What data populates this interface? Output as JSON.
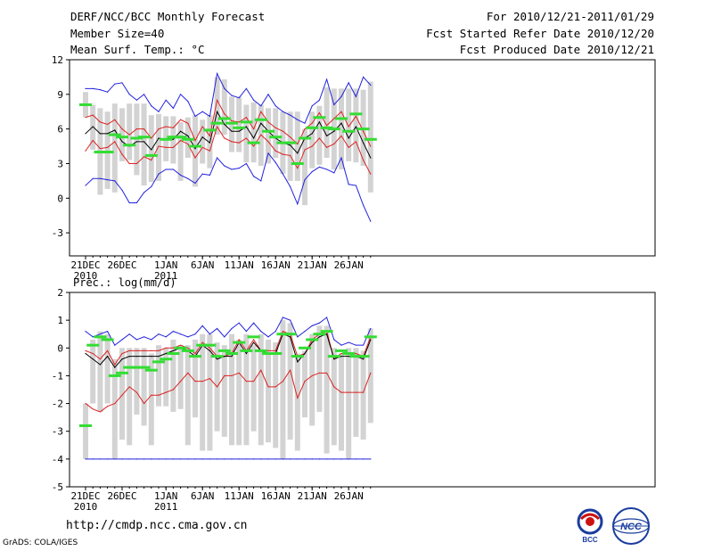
{
  "header": {
    "line1_left": "DERF/NCC/BCC Monthly Forecast",
    "line2_left": "Member Size=40",
    "line3_left": "Mean Surf. Temp.: °C",
    "line1_right": "For 2010/12/21-2011/01/29",
    "line2_right": "Fcst Started Refer Date 2010/12/20",
    "line3_right": "Fcst Produced Date 2010/12/21"
  },
  "footer": {
    "url": "http://cmdp.ncc.cma.gov.cn",
    "credit": "GrADS: COLA/IGES",
    "logo_left_text": "BCC",
    "logo_right_text": "NCC"
  },
  "colors": {
    "bar": "#d3d3d3",
    "green": "#33dd33",
    "mean": "#000000",
    "band": "#dd2222",
    "extreme": "#2222dd",
    "logo_blue": "#1a3d9e",
    "logo_red": "#cc1111"
  },
  "chart_data": [
    {
      "type": "line",
      "title": "Mean Surf. Temp.: °C",
      "ylabel": "°C",
      "ylim": [
        -5,
        12
      ],
      "yticks": [
        -3,
        0,
        3,
        6,
        9,
        12
      ],
      "x": [
        1,
        2,
        3,
        4,
        5,
        6,
        7,
        8,
        9,
        10,
        11,
        12,
        13,
        14,
        15,
        16,
        17,
        18,
        19,
        20,
        21,
        22,
        23,
        24,
        25,
        26,
        27,
        28,
        29,
        30,
        31,
        32,
        33,
        34,
        35,
        36,
        37,
        38,
        39,
        40
      ],
      "xticks": [
        {
          "x": 1,
          "label": "21DEC",
          "sub": "2010"
        },
        {
          "x": 6,
          "label": "26DEC",
          "sub": ""
        },
        {
          "x": 12,
          "label": "1JAN",
          "sub": "2011"
        },
        {
          "x": 17,
          "label": "6JAN",
          "sub": ""
        },
        {
          "x": 22,
          "label": "11JAN",
          "sub": ""
        },
        {
          "x": 27,
          "label": "16JAN",
          "sub": ""
        },
        {
          "x": 32,
          "label": "21JAN",
          "sub": ""
        },
        {
          "x": 37,
          "label": "26JAN",
          "sub": ""
        }
      ],
      "bars": {
        "low": [
          7.0,
          4.2,
          0.3,
          0.8,
          0.5,
          3.2,
          3.3,
          2.0,
          1.1,
          1.4,
          1.5,
          3.2,
          3.0,
          1.5,
          3.5,
          1.0,
          3.0,
          2.6,
          5.5,
          5.5,
          4.0,
          4.0,
          3.1,
          3.1,
          2.8,
          3.0,
          3.5,
          2.1,
          1.5,
          1.5,
          -0.6,
          2.6,
          2.9,
          3.5,
          2.5,
          2.5,
          3.2,
          3.1,
          2.8,
          0.5
        ],
        "high": [
          9.2,
          8.1,
          7.8,
          7.5,
          8.2,
          7.8,
          8.2,
          8.2,
          8.2,
          7.2,
          7.3,
          7.1,
          7.1,
          6.6,
          7.0,
          7.2,
          6.8,
          7.2,
          10.5,
          10.3,
          8.8,
          8.8,
          8.1,
          8.3,
          8.1,
          7.8,
          7.8,
          7.5,
          7.5,
          7.5,
          6.0,
          7.5,
          8.0,
          9.6,
          9.5,
          9.5,
          9.5,
          9.5,
          9.4,
          10.1
        ]
      },
      "green_marks": [
        8.1,
        null,
        4.0,
        4.0,
        5.5,
        5.3,
        4.6,
        5.2,
        5.3,
        3.7,
        null,
        5.1,
        5.3,
        5.3,
        5.1,
        4.5,
        null,
        5.9,
        6.5,
        6.9,
        6.5,
        6.1,
        6.6,
        4.8,
        6.8,
        5.8,
        5.3,
        4.8,
        4.8,
        3.0,
        5.2,
        6.1,
        7.0,
        6.1,
        6.0,
        6.9,
        5.8,
        7.3,
        6.0,
        5.1
      ],
      "series": [
        {
          "name": "max",
          "color": "#2222dd",
          "values": [
            9.5,
            9.5,
            9.4,
            9.2,
            9.9,
            10.0,
            9.0,
            8.5,
            9.0,
            8.0,
            7.5,
            8.5,
            7.8,
            9.0,
            8.4,
            7.1,
            7.5,
            7.1,
            10.8,
            9.5,
            8.9,
            8.7,
            9.5,
            8.5,
            8.0,
            9.0,
            8.0,
            7.5,
            7.2,
            6.8,
            6.5,
            8.0,
            8.5,
            10.3,
            8.1,
            8.8,
            10.0,
            8.8,
            10.5,
            9.8
          ]
        },
        {
          "name": "upper",
          "color": "#dd2222",
          "values": [
            7.0,
            7.2,
            6.6,
            6.4,
            6.8,
            6.0,
            5.5,
            6.0,
            6.0,
            5.2,
            6.0,
            6.2,
            6.1,
            6.8,
            6.5,
            5.0,
            6.2,
            5.4,
            8.5,
            7.3,
            6.7,
            6.6,
            7.0,
            6.0,
            7.5,
            6.6,
            6.1,
            5.8,
            5.3,
            4.7,
            6.0,
            6.5,
            7.4,
            6.3,
            6.9,
            7.5,
            6.2,
            7.1,
            5.8,
            4.5
          ]
        },
        {
          "name": "mean",
          "color": "#000000",
          "values": [
            5.6,
            6.2,
            5.6,
            5.6,
            5.9,
            4.9,
            4.5,
            4.9,
            4.9,
            4.2,
            5.2,
            5.1,
            5.1,
            5.8,
            5.4,
            4.3,
            5.3,
            4.8,
            7.5,
            6.4,
            5.8,
            5.8,
            6.2,
            5.2,
            6.5,
            5.8,
            5.2,
            4.8,
            4.6,
            3.9,
            5.2,
            5.6,
            6.6,
            5.4,
            5.8,
            6.5,
            5.2,
            6.2,
            4.8,
            3.5
          ]
        },
        {
          "name": "lower",
          "color": "#dd2222",
          "values": [
            4.1,
            5.0,
            4.3,
            4.4,
            4.9,
            3.8,
            3.0,
            3.0,
            3.6,
            3.3,
            4.5,
            4.4,
            4.4,
            5.0,
            4.7,
            3.5,
            4.4,
            4.1,
            6.2,
            5.2,
            4.9,
            4.8,
            5.2,
            4.5,
            5.5,
            4.9,
            4.1,
            3.8,
            3.7,
            2.6,
            4.2,
            4.5,
            5.2,
            4.4,
            4.7,
            5.4,
            4.4,
            4.9,
            3.3,
            2.1
          ]
        },
        {
          "name": "min",
          "color": "#2222dd",
          "values": [
            1.1,
            1.7,
            1.7,
            1.6,
            1.5,
            0.7,
            -0.4,
            -0.4,
            0.5,
            1.0,
            2.1,
            2.5,
            2.5,
            2.0,
            1.7,
            1.3,
            2.1,
            2.0,
            3.5,
            2.8,
            2.5,
            2.6,
            3.0,
            1.9,
            1.5,
            3.9,
            3.1,
            2.1,
            1.0,
            -0.5,
            1.6,
            2.3,
            2.7,
            2.5,
            2.2,
            3.5,
            1.2,
            1.1,
            -0.6,
            -2.0
          ]
        }
      ]
    },
    {
      "type": "line",
      "title": "Prec.: log(mm/d)",
      "ylabel": "log(mm/d)",
      "ylim": [
        -5,
        2
      ],
      "yticks": [
        -5,
        -4,
        -3,
        -2,
        -1,
        0,
        1,
        2
      ],
      "x": [
        1,
        2,
        3,
        4,
        5,
        6,
        7,
        8,
        9,
        10,
        11,
        12,
        13,
        14,
        15,
        16,
        17,
        18,
        19,
        20,
        21,
        22,
        23,
        24,
        25,
        26,
        27,
        28,
        29,
        30,
        31,
        32,
        33,
        34,
        35,
        36,
        37,
        38,
        39,
        40
      ],
      "xticks": [
        {
          "x": 1,
          "label": "21DEC",
          "sub": "2010"
        },
        {
          "x": 6,
          "label": "26DEC",
          "sub": ""
        },
        {
          "x": 12,
          "label": "1JAN",
          "sub": "2011"
        },
        {
          "x": 17,
          "label": "6JAN",
          "sub": ""
        },
        {
          "x": 22,
          "label": "11JAN",
          "sub": ""
        },
        {
          "x": 27,
          "label": "16JAN",
          "sub": ""
        },
        {
          "x": 32,
          "label": "21JAN",
          "sub": ""
        },
        {
          "x": 37,
          "label": "26JAN",
          "sub": ""
        }
      ],
      "bars": {
        "low": [
          -4.0,
          -2.0,
          -2.3,
          -2.0,
          -4.0,
          -3.3,
          -3.5,
          -2.4,
          -2.8,
          -3.5,
          -2.1,
          -2.1,
          -2.3,
          -2.2,
          -3.5,
          -2.5,
          -3.7,
          -3.7,
          -3.0,
          -3.2,
          -3.5,
          -3.5,
          -3.5,
          -3.0,
          -3.5,
          -3.4,
          -3.6,
          -4.0,
          -3.3,
          -3.7,
          -2.5,
          -2.8,
          -2.3,
          -3.8,
          -3.5,
          -3.7,
          -4.0,
          -3.2,
          -3.3,
          -2.7
        ],
        "high": [
          -2.0,
          0.3,
          0.6,
          0.5,
          -0.4,
          0.0,
          0.0,
          0.0,
          0.0,
          -0.2,
          0.1,
          0.0,
          0.3,
          0.1,
          0.1,
          0.3,
          0.5,
          0.5,
          0.2,
          0.1,
          0.5,
          0.3,
          0.5,
          0.1,
          0.5,
          0.3,
          0.2,
          1.0,
          0.9,
          -0.2,
          -0.1,
          0.5,
          0.8,
          0.8,
          0.0,
          -0.2,
          0.0,
          0.0,
          -0.1,
          0.7
        ]
      },
      "green_marks": [
        -2.8,
        0.1,
        0.4,
        0.3,
        -1.0,
        -0.9,
        -0.7,
        -0.7,
        -0.7,
        -0.8,
        -0.5,
        -0.4,
        -0.2,
        0.0,
        -0.1,
        -0.3,
        0.1,
        0.1,
        -0.3,
        -0.1,
        -0.2,
        0.2,
        -0.1,
        0.4,
        -0.1,
        -0.2,
        -0.2,
        0.5,
        0.5,
        -0.3,
        0.0,
        0.3,
        0.5,
        0.6,
        -0.3,
        -0.1,
        -0.2,
        -0.3,
        -0.3,
        0.4
      ],
      "series": [
        {
          "name": "max",
          "color": "#2222dd",
          "values": [
            0.6,
            0.4,
            0.5,
            0.6,
            0.1,
            0.3,
            0.5,
            0.3,
            0.4,
            0.3,
            0.5,
            0.4,
            0.6,
            0.5,
            0.4,
            0.5,
            0.8,
            0.5,
            0.7,
            0.4,
            0.7,
            0.9,
            0.6,
            0.9,
            0.6,
            0.4,
            0.6,
            1.1,
            1.0,
            0.4,
            0.6,
            0.8,
            0.9,
            1.1,
            0.3,
            0.1,
            0.2,
            0.1,
            0.1,
            0.7
          ]
        },
        {
          "name": "upper",
          "color": "#dd2222",
          "values": [
            -0.1,
            -0.2,
            -0.4,
            -0.1,
            -0.6,
            -0.2,
            -0.1,
            -0.1,
            -0.1,
            -0.1,
            -0.1,
            0.0,
            0.0,
            0.1,
            0.0,
            -0.2,
            0.2,
            0.0,
            -0.3,
            -0.3,
            -0.2,
            0.3,
            -0.1,
            0.3,
            -0.1,
            -0.1,
            -0.1,
            0.6,
            0.5,
            -0.3,
            -0.2,
            0.3,
            0.5,
            0.6,
            -0.4,
            -0.2,
            -0.2,
            -0.2,
            -0.3,
            0.4
          ]
        },
        {
          "name": "mean",
          "color": "#000000",
          "values": [
            -0.2,
            -0.4,
            -0.6,
            -0.3,
            -0.7,
            -0.4,
            -0.3,
            -0.3,
            -0.3,
            -0.3,
            -0.3,
            -0.2,
            -0.1,
            0.0,
            -0.1,
            -0.3,
            0.1,
            -0.1,
            -0.4,
            -0.3,
            -0.3,
            0.2,
            -0.2,
            0.2,
            -0.1,
            -0.2,
            -0.2,
            0.5,
            0.4,
            -0.5,
            -0.2,
            0.2,
            0.4,
            0.5,
            -0.4,
            -0.3,
            -0.3,
            -0.3,
            -0.4,
            0.3
          ]
        },
        {
          "name": "lower",
          "color": "#dd2222",
          "values": [
            -2.0,
            -2.2,
            -2.3,
            -2.1,
            -2.0,
            -1.7,
            -1.4,
            -1.6,
            -2.0,
            -1.7,
            -1.7,
            -1.6,
            -1.5,
            -1.2,
            -0.9,
            -1.2,
            -1.2,
            -1.1,
            -1.4,
            -1.0,
            -1.0,
            -0.9,
            -1.2,
            -1.2,
            -0.8,
            -1.4,
            -1.4,
            -1.2,
            -0.8,
            -1.8,
            -1.2,
            -1.0,
            -0.9,
            -0.9,
            -1.4,
            -1.6,
            -1.6,
            -1.6,
            -1.6,
            -0.9
          ]
        },
        {
          "name": "min",
          "color": "#2222dd",
          "values": [
            -4.0,
            -4.0,
            -4.0,
            -4.0,
            -4.0,
            -4.0,
            -4.0,
            -4.0,
            -4.0,
            -4.0,
            -4.0,
            -4.0,
            -4.0,
            -4.0,
            -4.0,
            -4.0,
            -4.0,
            -4.0,
            -4.0,
            -4.0,
            -4.0,
            -4.0,
            -4.0,
            -4.0,
            -4.0,
            -4.0,
            -4.0,
            -4.0,
            -4.0,
            -4.0,
            -4.0,
            -4.0,
            -4.0,
            -4.0,
            -4.0,
            -4.0,
            -4.0,
            -4.0,
            -4.0,
            -4.0
          ]
        }
      ]
    }
  ]
}
